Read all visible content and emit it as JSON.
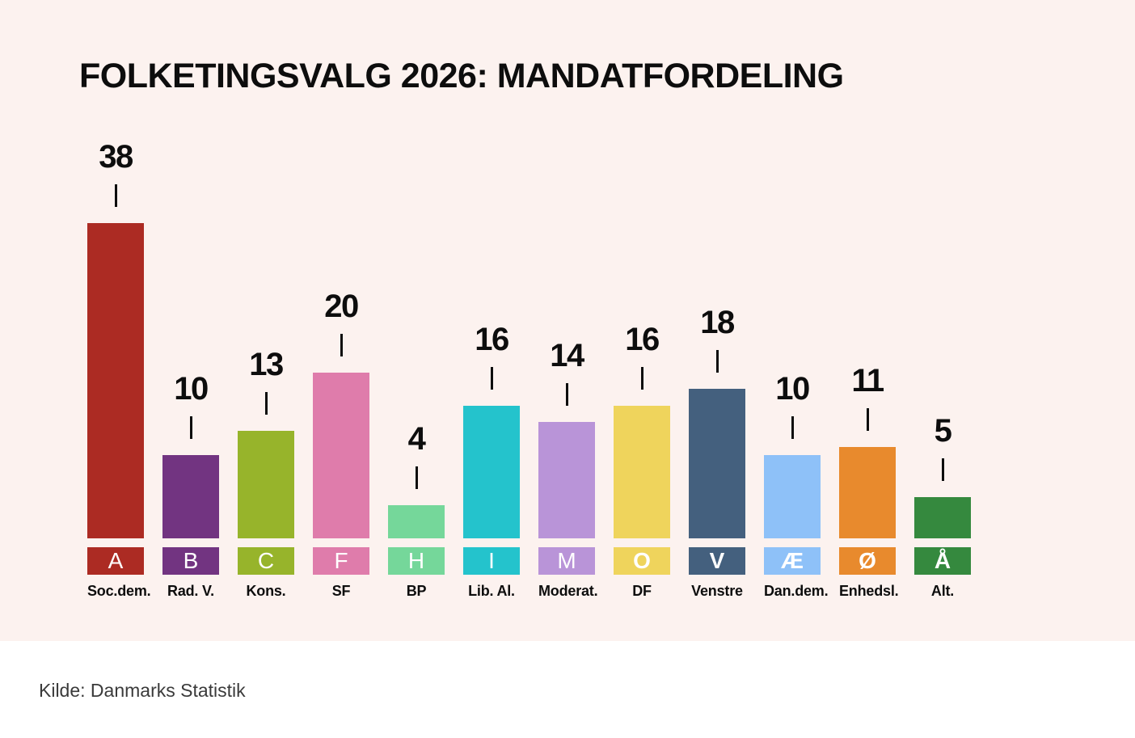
{
  "title": "FOLKETINGSVALG 2026: MANDATFORDELING",
  "source": "Kilde: Danmarks Statistik",
  "colors": {
    "panel_background": "#FCF2EF",
    "page_background": "#FFFFFF",
    "text": "#0D0D0D",
    "source_text": "#3A3A3A",
    "tick": "#0D0D0D",
    "legend_letter": "#FFFFFF"
  },
  "chart_data": {
    "type": "bar",
    "title": "FOLKETINGSVALG 2026: MANDATFORDELING",
    "xlabel": "",
    "ylabel": "",
    "ylim": [
      0,
      40
    ],
    "grid": false,
    "legend_position": "below-bars",
    "categories": [
      "A",
      "B",
      "C",
      "F",
      "H",
      "I",
      "M",
      "O",
      "V",
      "Æ",
      "Ø",
      "Å"
    ],
    "values": [
      38,
      10,
      13,
      20,
      4,
      16,
      14,
      16,
      18,
      10,
      11,
      5
    ],
    "parties": [
      {
        "letter": "A",
        "name": "Soc.dem.",
        "seats": 38,
        "color": "#AC2B23",
        "letter_weight": "regular"
      },
      {
        "letter": "B",
        "name": "Rad. V.",
        "seats": 10,
        "color": "#723481",
        "letter_weight": "regular"
      },
      {
        "letter": "C",
        "name": "Kons.",
        "seats": 13,
        "color": "#97B42B",
        "letter_weight": "regular"
      },
      {
        "letter": "F",
        "name": "SF",
        "seats": 20,
        "color": "#DF7CAB",
        "letter_weight": "regular"
      },
      {
        "letter": "H",
        "name": "BP",
        "seats": 4,
        "color": "#75D79A",
        "letter_weight": "regular"
      },
      {
        "letter": "I",
        "name": "Lib. Al.",
        "seats": 16,
        "color": "#24C3CC",
        "letter_weight": "regular"
      },
      {
        "letter": "M",
        "name": "Moderat.",
        "seats": 14,
        "color": "#B994D8",
        "letter_weight": "regular"
      },
      {
        "letter": "O",
        "name": "DF",
        "seats": 16,
        "color": "#EFD45C",
        "letter_weight": "bold"
      },
      {
        "letter": "V",
        "name": "Venstre",
        "seats": 18,
        "color": "#44607E",
        "letter_weight": "bold"
      },
      {
        "letter": "Æ",
        "name": "Dan.dem.",
        "seats": 10,
        "color": "#8EC1F8",
        "letter_weight": "bold"
      },
      {
        "letter": "Ø",
        "name": "Enhedsl.",
        "seats": 11,
        "color": "#E88A2D",
        "letter_weight": "bold"
      },
      {
        "letter": "Å",
        "name": "Alt.",
        "seats": 5,
        "color": "#35893E",
        "letter_weight": "bold"
      }
    ]
  }
}
